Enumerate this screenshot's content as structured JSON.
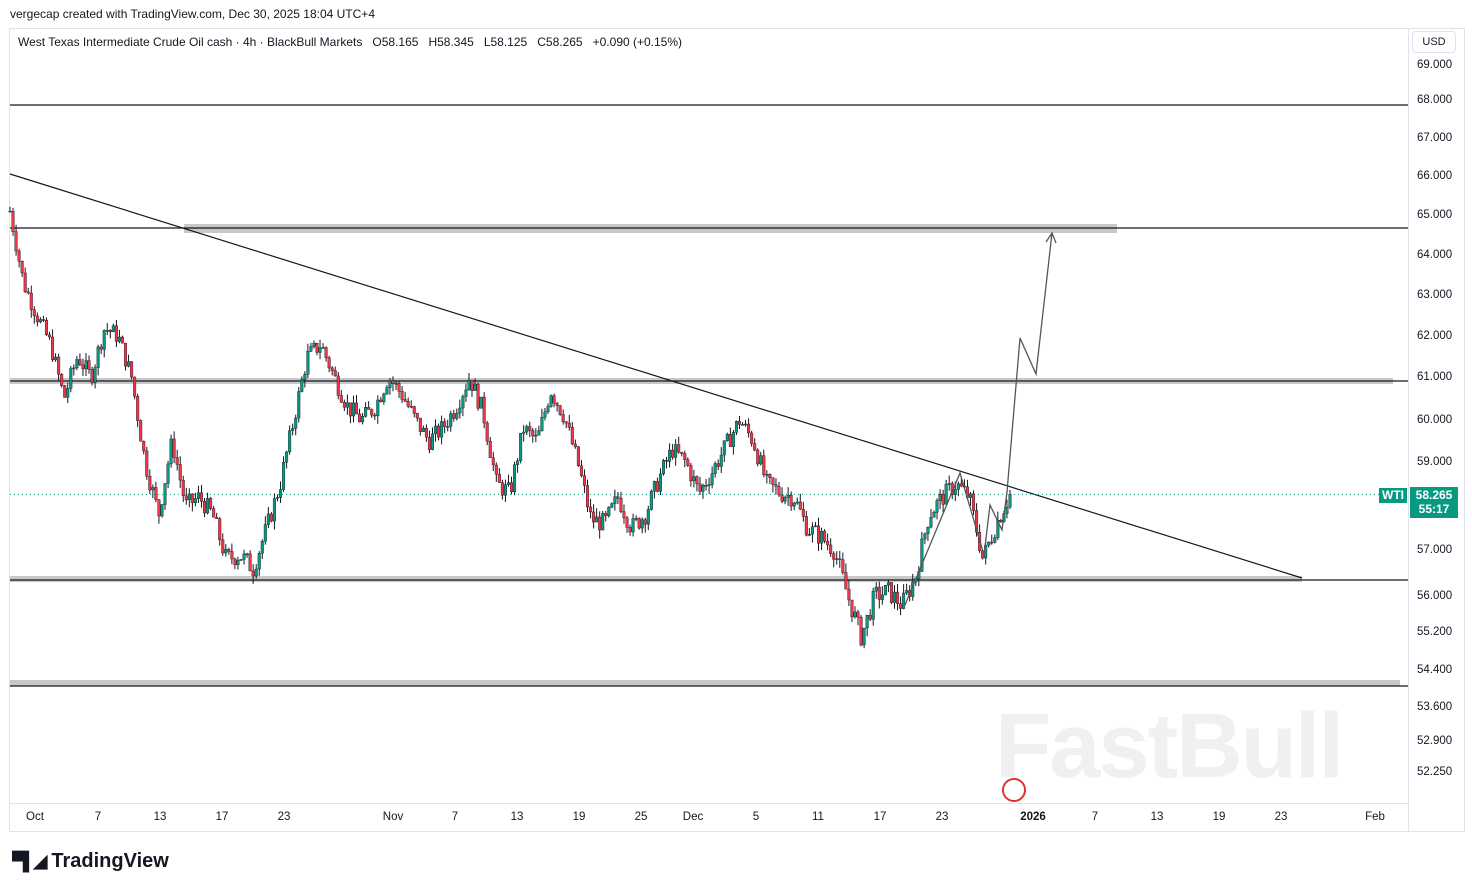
{
  "credit": "vergecap created with TradingView.com, Dec 30, 2025 18:04 UTC+4",
  "legend": {
    "symbol": "West Texas Intermediate Crude Oil cash · 4h · BlackBull Markets",
    "open": "O58.165",
    "high": "H58.345",
    "low": "L58.125",
    "close": "C58.265",
    "change": "+0.090 (+0.15%)"
  },
  "currency": "USD",
  "price_tag": {
    "symbol": "WTI",
    "price": "58.265",
    "countdown": "55:17"
  },
  "footer": {
    "brand": "TradingView"
  },
  "watermark": "FastBull",
  "colors": {
    "up": "#089981",
    "down": "#f23645"
  },
  "chart_data": {
    "type": "candlestick",
    "title": "West Texas Intermediate Crude Oil cash · 4h",
    "y_ticks": [
      "69.000",
      "68.000",
      "67.000",
      "66.000",
      "65.000",
      "64.000",
      "63.000",
      "62.000",
      "61.000",
      "60.000",
      "59.000",
      "57.000",
      "56.000",
      "55.200",
      "54.400",
      "53.600",
      "52.900",
      "52.250"
    ],
    "x_ticks": [
      "Oct",
      "7",
      "13",
      "17",
      "23",
      "Nov",
      "7",
      "13",
      "19",
      "25",
      "Dec",
      "5",
      "11",
      "17",
      "23",
      "2026",
      "7",
      "13",
      "19",
      "23",
      "Feb"
    ],
    "approx_close_path": [
      65.1,
      63.3,
      62.5,
      61.8,
      60.5,
      61.5,
      61,
      62.2,
      62,
      61,
      59,
      57.8,
      59.5,
      58,
      58.2,
      57.8,
      56.8,
      56.9,
      56.6,
      57.5,
      58.5,
      60,
      61.5,
      61.8,
      61,
      60.3,
      60,
      60.3,
      61,
      60.6,
      60,
      59.5,
      59.8,
      60.3,
      61,
      60.2,
      58.5,
      58.3,
      59.8,
      59.5,
      60.7,
      60.1,
      59,
      57.7,
      57.6,
      58.2,
      57.5,
      57.8,
      58.6,
      59.3,
      59,
      58.3,
      58.8,
      59.4,
      60,
      59.5,
      58.5,
      58.3,
      58.2,
      57.5,
      57.3,
      57,
      56,
      55.1,
      56,
      56.1,
      55.8,
      56.4,
      57.8,
      58.2,
      58.5,
      58.2,
      56.8,
      57.6,
      58.265
    ],
    "horizontal_levels": [
      68,
      64.7,
      61,
      56.4,
      54.1
    ],
    "last_price": 58.265
  }
}
